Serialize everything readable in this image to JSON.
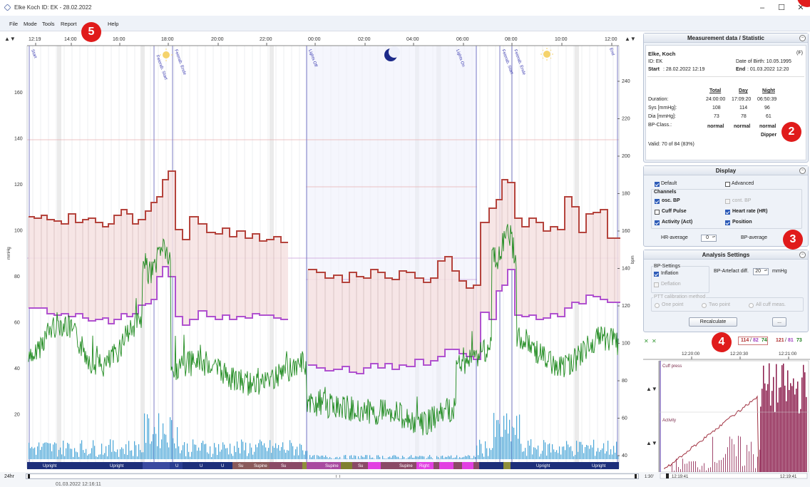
{
  "window": {
    "title": "Elke Koch ID: EK - 28.02.2022",
    "minimize": "–",
    "maximize": "☐",
    "close": "✕"
  },
  "menu": [
    "File",
    "Mode",
    "Tools",
    "Report",
    "Help"
  ],
  "markers": {
    "m2": "2",
    "m3": "3",
    "m4": "4",
    "m5": "5"
  },
  "chart": {
    "top_arrow_left": "▲▼",
    "top_arrow_right": "▲▼",
    "time_labels": [
      "12:19",
      "14:00",
      "16:00",
      "18:00",
      "20:00",
      "22:00",
      "00:00",
      "02:00",
      "04:00",
      "06:00",
      "08:00",
      "10:00",
      "12:00"
    ],
    "left_axis": [
      "160",
      "140",
      "120",
      "100",
      "80",
      "60",
      "40",
      "20"
    ],
    "left_axis_unit": "mmHg",
    "right_axis": [
      "240",
      "220",
      "200",
      "180",
      "160",
      "140",
      "120",
      "100",
      "80",
      "60",
      "40"
    ],
    "right_axis_unit": "bpm",
    "event_labels": [
      "Start",
      "Feierab. Start",
      "Feierab. Ende",
      "Lights Off",
      "Lights On",
      "Feierab. Start",
      "Feierab. Ende",
      "End"
    ],
    "position_labels": [
      "Upright",
      "Upright",
      "U",
      "U",
      "U",
      "Su",
      "Supine",
      "Su",
      "Supine",
      "Su",
      "Supine",
      "Right",
      "Upright",
      "Upright"
    ],
    "scroll_left_label": "24hr",
    "scroll_date": "01.03.2022 12:16:11"
  },
  "measurement": {
    "header": "Measurement data / Statistic",
    "name": "Elke,  Koch",
    "gender": "(F)",
    "id": "ID: EK",
    "dob": "Date of Birth: 10.05.1995",
    "start_label": "Start",
    "start_value": ": 28.02.2022  12:19",
    "end_label": "End",
    "end_value": ": 01.03.2022  12:20",
    "col_total": "Total",
    "col_day": "Day",
    "col_night": "Night",
    "rows": [
      {
        "label": "Duration:",
        "total": "24:00:00",
        "day": "17:09:20",
        "night": "06:50:39"
      },
      {
        "label": "Sys [mmHg]:",
        "total": "108",
        "day": "114",
        "night": "96"
      },
      {
        "label": "Dia [mmHg]:",
        "total": "73",
        "day": "78",
        "night": "61"
      },
      {
        "label": "BP-Class.:",
        "total": "normal",
        "day": "normal",
        "night": "normal"
      }
    ],
    "dipper": "Dipper",
    "valid": "Valid:  70  of  84  (83%)"
  },
  "display": {
    "header": "Display",
    "default": "Default",
    "advanced": "Advanced",
    "channels": "Channels",
    "osc_bp": "osc. BP",
    "cont_bp": "cont. BP",
    "cuff_pulse": "Cuff Pulse",
    "heart_rate": "Heart rate (HR)",
    "activity": "Activity (Act)",
    "position": "Position",
    "hr_average": "HR-average",
    "hr_average_value": "0",
    "bp_average": "BP-average"
  },
  "analysis": {
    "header": "Analysis Settings",
    "bp_settings": "BP-Settings",
    "inflation": "Inflation",
    "deflation": "Deflation",
    "artefact": "BP-Artefact diff.",
    "artefact_value": "20",
    "artefact_unit": "mmHg",
    "ptt": "PTT calibration method",
    "one_point": "One point",
    "two_point": "Two point",
    "all_cuff": "All cuff meas.",
    "recalculate": "Recalculate",
    "extra_btn": "..."
  },
  "mini": {
    "reading1_sys": "114",
    "reading1_dia": "82",
    "reading1_hr": "74",
    "reading2_sys": "121",
    "reading2_dia": "81",
    "reading2_hr": "73",
    "times": [
      "12:20:00",
      "12:20:30",
      "12:21:00"
    ],
    "cuff_label": "Cuff press",
    "activity_label": "Activity",
    "left_arrow": "▲▼",
    "left_arrow2": "▲▼",
    "scale_left": "1:30'",
    "time_start": "12:19:41",
    "time_end": "12:19:41"
  }
}
